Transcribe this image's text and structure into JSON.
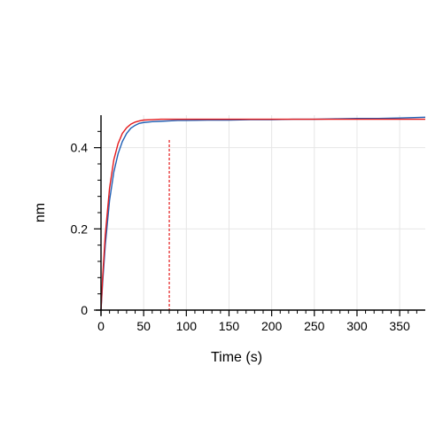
{
  "chart_data": {
    "type": "line",
    "xlabel": "Time (s)",
    "ylabel": "nm",
    "xlim": [
      0,
      380
    ],
    "ylim": [
      0,
      0.48
    ],
    "xticks": [
      0,
      50,
      100,
      150,
      200,
      250,
      300,
      350
    ],
    "xtick_labels": [
      "0",
      "50",
      "100",
      "150",
      "200",
      "250",
      "300",
      "350"
    ],
    "yticks": [
      0,
      0.2,
      0.4
    ],
    "ytick_labels": [
      "0",
      "0.2",
      "0.4"
    ],
    "grid": true,
    "vertical_marker": {
      "x": 80,
      "color": "#e41a1c",
      "style": "dashed"
    },
    "series": [
      {
        "color": "#1f5fb4",
        "x": [
          0,
          2,
          5,
          10,
          15,
          20,
          25,
          30,
          35,
          40,
          45,
          50,
          60,
          70,
          80,
          90,
          100,
          125,
          150,
          175,
          200,
          225,
          250,
          275,
          300,
          325,
          350,
          380
        ],
        "y": [
          0.0,
          0.07,
          0.16,
          0.27,
          0.34,
          0.385,
          0.415,
          0.435,
          0.448,
          0.455,
          0.46,
          0.462,
          0.464,
          0.465,
          0.466,
          0.467,
          0.467,
          0.468,
          0.468,
          0.469,
          0.469,
          0.47,
          0.47,
          0.471,
          0.472,
          0.472,
          0.473,
          0.475
        ]
      },
      {
        "color": "#e41a1c",
        "x": [
          0,
          2,
          5,
          10,
          15,
          20,
          25,
          30,
          35,
          40,
          45,
          50,
          60,
          70,
          80,
          90,
          100,
          125,
          150,
          200,
          250,
          300,
          350,
          380
        ],
        "y": [
          0.0,
          0.085,
          0.185,
          0.3,
          0.37,
          0.41,
          0.435,
          0.449,
          0.458,
          0.463,
          0.466,
          0.468,
          0.469,
          0.47,
          0.47,
          0.47,
          0.47,
          0.47,
          0.47,
          0.47,
          0.47,
          0.47,
          0.47,
          0.47
        ]
      }
    ]
  }
}
